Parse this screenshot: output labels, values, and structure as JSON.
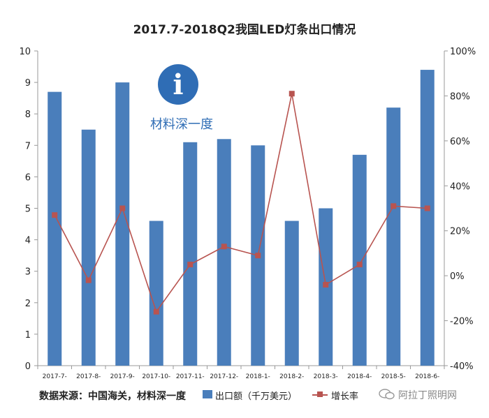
{
  "chart_data": {
    "type": "bar",
    "title": "2017.7-2018Q2我国LED灯条出口情况",
    "categories": [
      "2017-7-",
      "2017-8-",
      "2017-9-",
      "2017-10-",
      "2017-11-",
      "2017-12-",
      "2018-1-",
      "2018-2-",
      "2018-3-",
      "2018-4-",
      "2018-5-",
      "2018-6-"
    ],
    "series": [
      {
        "name": "出口额（千万美元）",
        "type": "bar",
        "axis": "left",
        "color": "#4a7ebb",
        "values": [
          8.7,
          7.5,
          9.0,
          4.6,
          7.1,
          7.2,
          7.0,
          4.6,
          5.0,
          6.7,
          8.2,
          9.4
        ]
      },
      {
        "name": "增长率",
        "type": "line",
        "axis": "right",
        "color": "#b85450",
        "values": [
          27,
          -2,
          30,
          -16,
          5,
          13,
          9,
          81,
          -4,
          5,
          31,
          30
        ]
      }
    ],
    "y_left": {
      "min": 0,
      "max": 10,
      "ticks": [
        "0",
        "1",
        "2",
        "3",
        "4",
        "5",
        "6",
        "7",
        "8",
        "9",
        "10"
      ]
    },
    "y_right": {
      "min": -40,
      "max": 100,
      "ticks": [
        "-40%",
        "-20%",
        "0%",
        "20%",
        "40%",
        "60%",
        "80%",
        "100%"
      ]
    },
    "grid": false,
    "legend_position": "bottom"
  },
  "source_text": "数据来源：中国海关，材料深一度",
  "legend": {
    "bar_label": "出口额（千万美元）",
    "line_label": "增长率"
  },
  "watermark": {
    "text": "阿拉丁照明网",
    "icon": "wechat-icon"
  },
  "logo": {
    "letter": "i",
    "text": "材料深一度"
  }
}
